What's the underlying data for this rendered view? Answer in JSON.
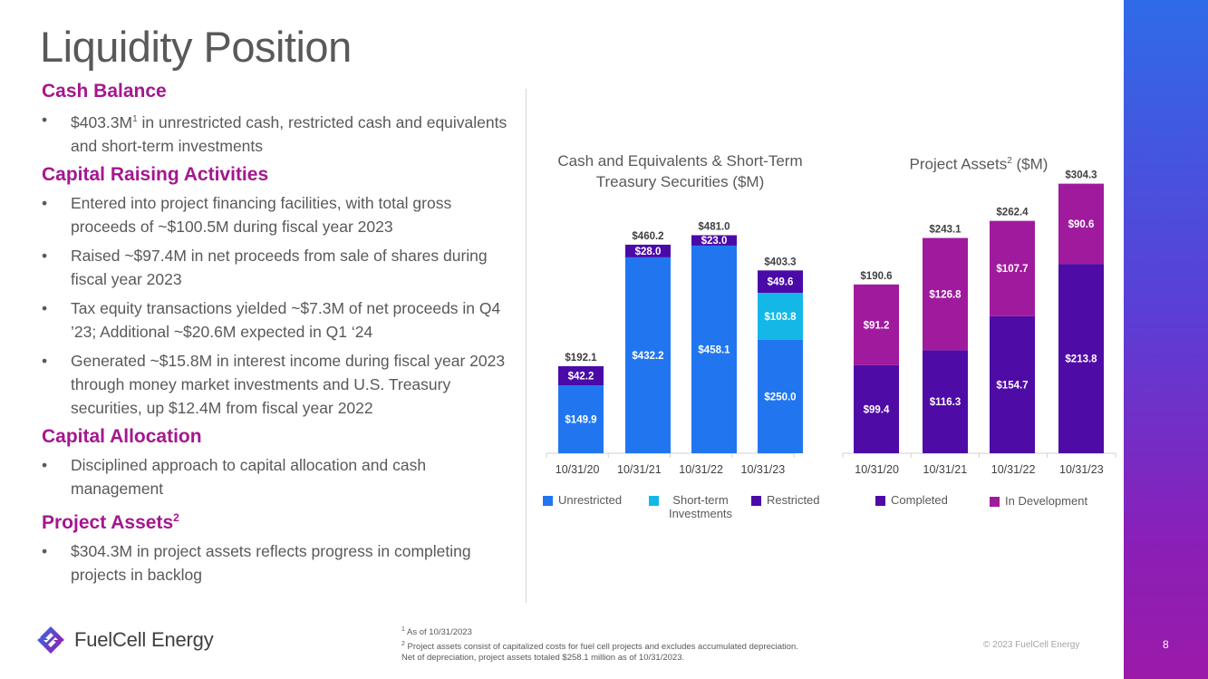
{
  "title": "Liquidity Position",
  "sections": [
    {
      "heading": "Cash Balance",
      "bullets": [
        {
          "text": "$403.3M",
          "sup": "1",
          "rest": " in unrestricted cash, restricted cash and equivalents and short-term investments"
        }
      ]
    },
    {
      "heading": "Capital Raising Activities",
      "bullets": [
        {
          "text": "Entered into project financing facilities, with total gross proceeds of ~$100.5M during fiscal year 2023"
        },
        {
          "text": "Raised ~$97.4M  in net proceeds from sale of shares during fiscal year 2023"
        },
        {
          "text": "Tax equity transactions yielded ~$7.3M of net proceeds in Q4 ’23; Additional ~$20.6M expected in Q1 ‘24"
        },
        {
          "text": "Generated ~$15.8M in interest income during fiscal year 2023 through money market investments and U.S. Treasury securities, up $12.4M from fiscal year 2022"
        }
      ]
    },
    {
      "heading": "Capital Allocation",
      "bullets": [
        {
          "text": "Disciplined approach to capital allocation and cash management"
        }
      ]
    },
    {
      "heading": "Project Assets",
      "heading_sup": "2",
      "bullets": [
        {
          "text": "$304.3M in project assets reflects progress in completing projects in backlog"
        }
      ]
    }
  ],
  "chart_data": [
    {
      "type": "bar",
      "stacked": true,
      "title": "Cash and Equivalents & Short-Term Treasury Securities ($M)",
      "categories": [
        "10/31/20",
        "10/31/21",
        "10/31/22",
        "10/31/23"
      ],
      "series": [
        {
          "name": "Unrestricted",
          "color": "#2176f0",
          "values": [
            149.9,
            432.2,
            458.1,
            250.0
          ],
          "labels": [
            "$149.9",
            "$432.2",
            "$458.1",
            "$250.0"
          ]
        },
        {
          "name": "Short-term Investments",
          "color": "#14b8e6",
          "values": [
            0,
            0,
            0,
            103.8
          ],
          "labels": [
            "",
            "",
            "",
            "$103.8"
          ]
        },
        {
          "name": "Restricted",
          "color": "#4a0aa8",
          "values": [
            42.2,
            28.0,
            23.0,
            49.6
          ],
          "labels": [
            "$42.2",
            "$28.0",
            "$23.0",
            "$49.6"
          ]
        }
      ],
      "totals": [
        "$192.1",
        "$460.2",
        "$481.0",
        "$403.3"
      ],
      "total_values": [
        192.1,
        460.2,
        481.0,
        403.3
      ]
    },
    {
      "type": "bar",
      "stacked": true,
      "title": "Project Assets",
      "title_sup": "2",
      "title_suffix": " ($M)",
      "categories": [
        "10/31/20",
        "10/31/21",
        "10/31/22",
        "10/31/23"
      ],
      "series": [
        {
          "name": "Completed",
          "color": "#4e0ba6",
          "values": [
            99.4,
            116.3,
            154.7,
            213.8
          ],
          "labels": [
            "$99.4",
            "$116.3",
            "$154.7",
            "$213.8"
          ]
        },
        {
          "name": "In Development",
          "color": "#a01a9e",
          "values": [
            91.2,
            126.8,
            107.7,
            90.6
          ],
          "labels": [
            "$91.2",
            "$126.8",
            "$107.7",
            "$90.6"
          ]
        }
      ],
      "totals": [
        "$190.6",
        "$243.1",
        "$262.4",
        "$304.3"
      ],
      "total_values": [
        190.6,
        243.1,
        262.4,
        304.3
      ]
    }
  ],
  "legend1": [
    {
      "label": "Unrestricted",
      "color": "#2176f0"
    },
    {
      "label": "Short-term Investments",
      "color": "#14b8e6"
    },
    {
      "label": "Restricted",
      "color": "#4a0aa8"
    }
  ],
  "legend2": [
    {
      "label": "Completed",
      "color": "#4e0ba6"
    },
    {
      "label": "In Development",
      "color": "#a01a9e"
    }
  ],
  "logo_text": "FuelCell Energy",
  "footnotes": [
    {
      "sup": "1",
      "text": " As of 10/31/2023"
    },
    {
      "sup": "2",
      "text": " Project assets consist of capitalized costs for fuel cell projects and excludes accumulated depreciation."
    },
    {
      "sup": "",
      "text": "Net of depreciation, project assets totaled $258.1 million as of 10/31/2023."
    }
  ],
  "copyright": "© 2023 FuelCell Energy",
  "page_number": "8"
}
